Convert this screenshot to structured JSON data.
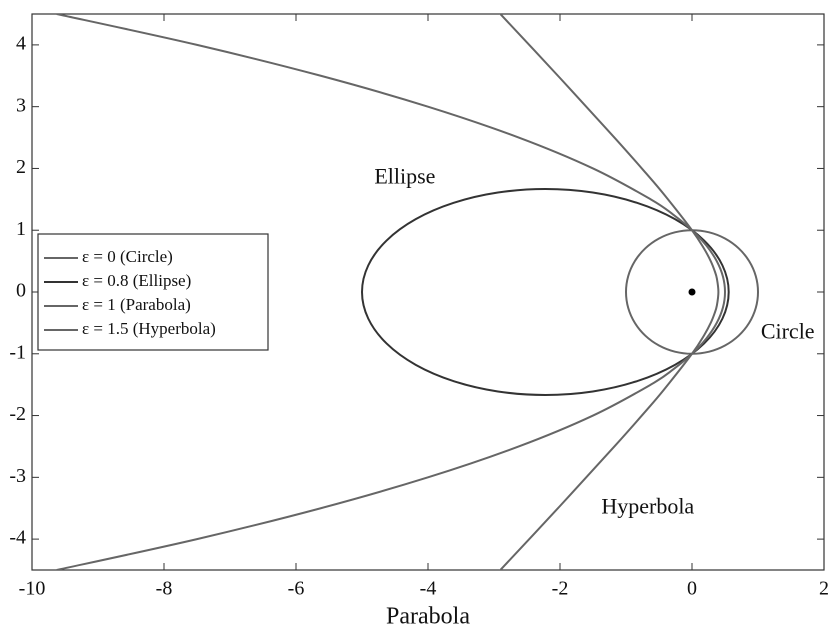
{
  "chart_data": {
    "type": "line",
    "xlabel": "Parabola",
    "xlim": [
      -10,
      2
    ],
    "ylim": [
      -4.5,
      4.5
    ],
    "xticks": [
      -10,
      -8,
      -6,
      -4,
      -2,
      0,
      2
    ],
    "yticks": [
      -4,
      -3,
      -2,
      -1,
      0,
      1,
      2,
      3,
      4
    ],
    "legend": "center left",
    "series": [
      {
        "name": "ε = 0 (Circle)",
        "color": "#666666",
        "closed": true,
        "x": [
          1,
          0.966,
          0.866,
          0.707,
          0.5,
          0.259,
          0,
          -0.259,
          -0.5,
          -0.707,
          -0.866,
          -0.966,
          -1,
          -0.966,
          -0.866,
          -0.707,
          -0.5,
          -0.259,
          0,
          0.259,
          0.5,
          0.707,
          0.866,
          0.966
        ],
        "values": [
          0,
          0.259,
          0.5,
          0.707,
          0.866,
          0.966,
          1,
          0.966,
          0.866,
          0.707,
          0.5,
          0.259,
          0,
          -0.259,
          -0.5,
          -0.707,
          -0.866,
          -0.966,
          -1,
          -0.966,
          -0.866,
          -0.707,
          -0.5,
          -0.259
        ]
      },
      {
        "name": "ε = 0.8 (Ellipse)",
        "color": "#333333",
        "closed": true,
        "x": [
          0.556,
          0.461,
          0.184,
          -0.258,
          -0.833,
          -1.503,
          -2.222,
          -2.941,
          -3.611,
          -4.186,
          -4.628,
          -4.905,
          -5,
          -4.905,
          -4.628,
          -4.186,
          -3.611,
          -2.941,
          -2.222,
          -1.503,
          -0.833,
          -0.258,
          0.184,
          0.461
        ],
        "values": [
          0,
          0.431,
          0.833,
          1.179,
          1.443,
          1.61,
          1.667,
          1.61,
          1.443,
          1.179,
          0.833,
          0.431,
          0,
          -0.431,
          -0.833,
          -1.179,
          -1.443,
          -1.61,
          -1.667,
          -1.61,
          -1.443,
          -1.179,
          -0.833,
          -0.431
        ]
      },
      {
        "name": "ε = 1 (Parabola)",
        "color": "#666666",
        "closed": false,
        "x": [
          -9.625,
          -7.5,
          -5.625,
          -4,
          -2.625,
          -1.5,
          -0.625,
          -0.281,
          0,
          0.219,
          0.375,
          0.469,
          0.5,
          0.469,
          0.375,
          0.219,
          0,
          -0.281,
          -0.625,
          -1.5,
          -2.625,
          -4,
          -5.625,
          -7.5,
          -9.625
        ],
        "values": [
          -4.5,
          -4,
          -3.5,
          -3,
          -2.5,
          -2,
          -1.5,
          -1.25,
          -1,
          -0.75,
          -0.5,
          -0.25,
          0,
          0.25,
          0.5,
          0.75,
          1,
          1.25,
          1.5,
          2,
          2.5,
          3,
          3.5,
          4,
          4.5
        ]
      },
      {
        "name": "ε = 1.5 (Hyperbola)",
        "color": "#666666",
        "closed": false,
        "x": [
          -2.974,
          -2,
          -1.155,
          -0.702,
          -0.423,
          0,
          0.186,
          0.286,
          0.343,
          0.377,
          0.4,
          0.377,
          0.343,
          0.286,
          0.186,
          0,
          -0.423,
          -0.702,
          -1.155,
          -2,
          -2.974
        ],
        "values": [
          -4.58,
          -3.464,
          -2.476,
          -1.929,
          -1.578,
          -1,
          -0.696,
          -0.495,
          -0.343,
          -0.2175,
          0,
          0.2175,
          0.343,
          0.495,
          0.696,
          1,
          1.578,
          1.929,
          2.476,
          3.464,
          4.58
        ]
      }
    ],
    "markers": [
      {
        "x": 0,
        "y": 0
      }
    ],
    "annotations": [
      {
        "text": "Ellipse",
        "x": -4.35,
        "y": 1.84
      },
      {
        "text": "Circle",
        "x": 1.45,
        "y": -0.67
      },
      {
        "text": "Hyperbola",
        "x": -0.67,
        "y": -3.5
      }
    ]
  }
}
